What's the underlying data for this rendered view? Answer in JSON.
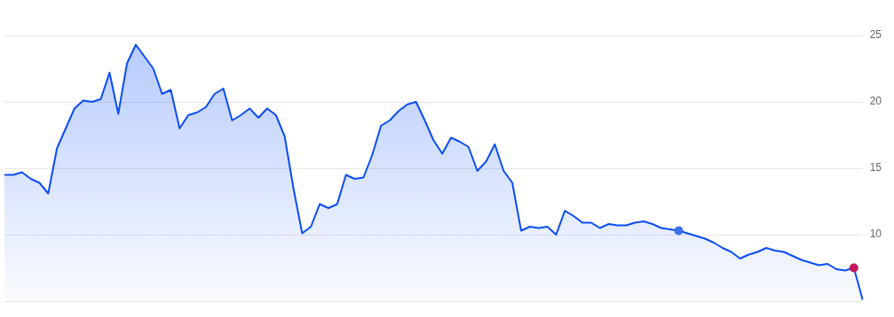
{
  "chart_data": {
    "type": "area",
    "categories": [
      null,
      null,
      null,
      null,
      null,
      null,
      null,
      null,
      null,
      null,
      null,
      null,
      null,
      null,
      null,
      null,
      null,
      null,
      null,
      null,
      null,
      null,
      null,
      null,
      null,
      null,
      null,
      null,
      null,
      null,
      null,
      null,
      null,
      null,
      null,
      null,
      null,
      null,
      null,
      null,
      null,
      null,
      null,
      null,
      null,
      null,
      null,
      null,
      null,
      null,
      null,
      null,
      null,
      null,
      null,
      null,
      null,
      null,
      null,
      null,
      null,
      null,
      null,
      null,
      null,
      null,
      null,
      null,
      null,
      null,
      null,
      null,
      null,
      null,
      null,
      null,
      null,
      null,
      null,
      null,
      null,
      null,
      null,
      null,
      null,
      null,
      null,
      null,
      null,
      null,
      null,
      null,
      null,
      null,
      null,
      null,
      null,
      null,
      null
    ],
    "series": [
      {
        "color": "#0a4cf5",
        "values": [
          14.5,
          14.5,
          14.7,
          14.2,
          13.9,
          13.1,
          16.5,
          18.0,
          19.5,
          20.1,
          20.0,
          20.2,
          22.2,
          19.1,
          22.9,
          24.3,
          23.4,
          22.5,
          20.6,
          20.9,
          18.0,
          19.0,
          19.2,
          19.6,
          20.6,
          21.0,
          18.6,
          19.0,
          19.5,
          18.8,
          19.5,
          19.0,
          17.4,
          13.5,
          10.1,
          10.6,
          12.3,
          12.0,
          12.3,
          14.5,
          14.2,
          14.3,
          16.0,
          18.2,
          18.6,
          19.3,
          19.8,
          20.0,
          18.6,
          17.1,
          16.1,
          17.3,
          17.0,
          16.6,
          14.8,
          15.5,
          16.8,
          14.8,
          13.9,
          10.3,
          10.6,
          10.5,
          10.6,
          10.0,
          11.8,
          11.4,
          10.9,
          10.9,
          10.5,
          10.8,
          10.7,
          10.7,
          10.9,
          11.0,
          10.8,
          10.5,
          10.4,
          10.3,
          10.1,
          9.9,
          9.7,
          9.4,
          9.0,
          8.7,
          8.2,
          8.5,
          8.7,
          9.0,
          8.8,
          8.7,
          8.4,
          8.1,
          7.9,
          7.7,
          7.8,
          7.4,
          7.3,
          7.5,
          5.1
        ]
      },
      {
        "type": "scatter",
        "color": "#3b6fe8",
        "values": [
          null,
          null,
          null,
          null,
          null,
          null,
          null,
          null,
          null,
          null,
          null,
          null,
          null,
          null,
          null,
          null,
          null,
          null,
          null,
          null,
          null,
          null,
          null,
          null,
          null,
          null,
          null,
          null,
          null,
          null,
          null,
          null,
          null,
          null,
          null,
          null,
          null,
          null,
          null,
          null,
          null,
          null,
          null,
          null,
          null,
          null,
          null,
          null,
          null,
          null,
          null,
          null,
          null,
          null,
          null,
          null,
          null,
          null,
          null,
          null,
          null,
          null,
          null,
          null,
          null,
          null,
          null,
          null,
          null,
          null,
          null,
          null,
          null,
          null,
          null,
          null,
          null,
          10.3,
          null,
          null,
          null,
          null,
          null,
          null,
          null,
          null,
          null,
          null,
          null,
          null,
          null,
          null,
          null,
          null,
          null,
          null,
          null,
          null,
          null
        ]
      },
      {
        "type": "scatter",
        "color": "#c2185b",
        "values": [
          null,
          null,
          null,
          null,
          null,
          null,
          null,
          null,
          null,
          null,
          null,
          null,
          null,
          null,
          null,
          null,
          null,
          null,
          null,
          null,
          null,
          null,
          null,
          null,
          null,
          null,
          null,
          null,
          null,
          null,
          null,
          null,
          null,
          null,
          null,
          null,
          null,
          null,
          null,
          null,
          null,
          null,
          null,
          null,
          null,
          null,
          null,
          null,
          null,
          null,
          null,
          null,
          null,
          null,
          null,
          null,
          null,
          null,
          null,
          null,
          null,
          null,
          null,
          null,
          null,
          null,
          null,
          null,
          null,
          null,
          null,
          null,
          null,
          null,
          null,
          null,
          null,
          null,
          null,
          null,
          null,
          null,
          null,
          null,
          null,
          null,
          null,
          null,
          null,
          null,
          null,
          null,
          null,
          null,
          null,
          null,
          null,
          7.5,
          null
        ]
      }
    ],
    "ylim": [
      5,
      25
    ],
    "yticks": [
      {
        "value": 5,
        "label": null
      },
      10,
      15,
      20,
      25
    ],
    "grid": "y",
    "tick_labels": "y",
    "legend": false
  }
}
